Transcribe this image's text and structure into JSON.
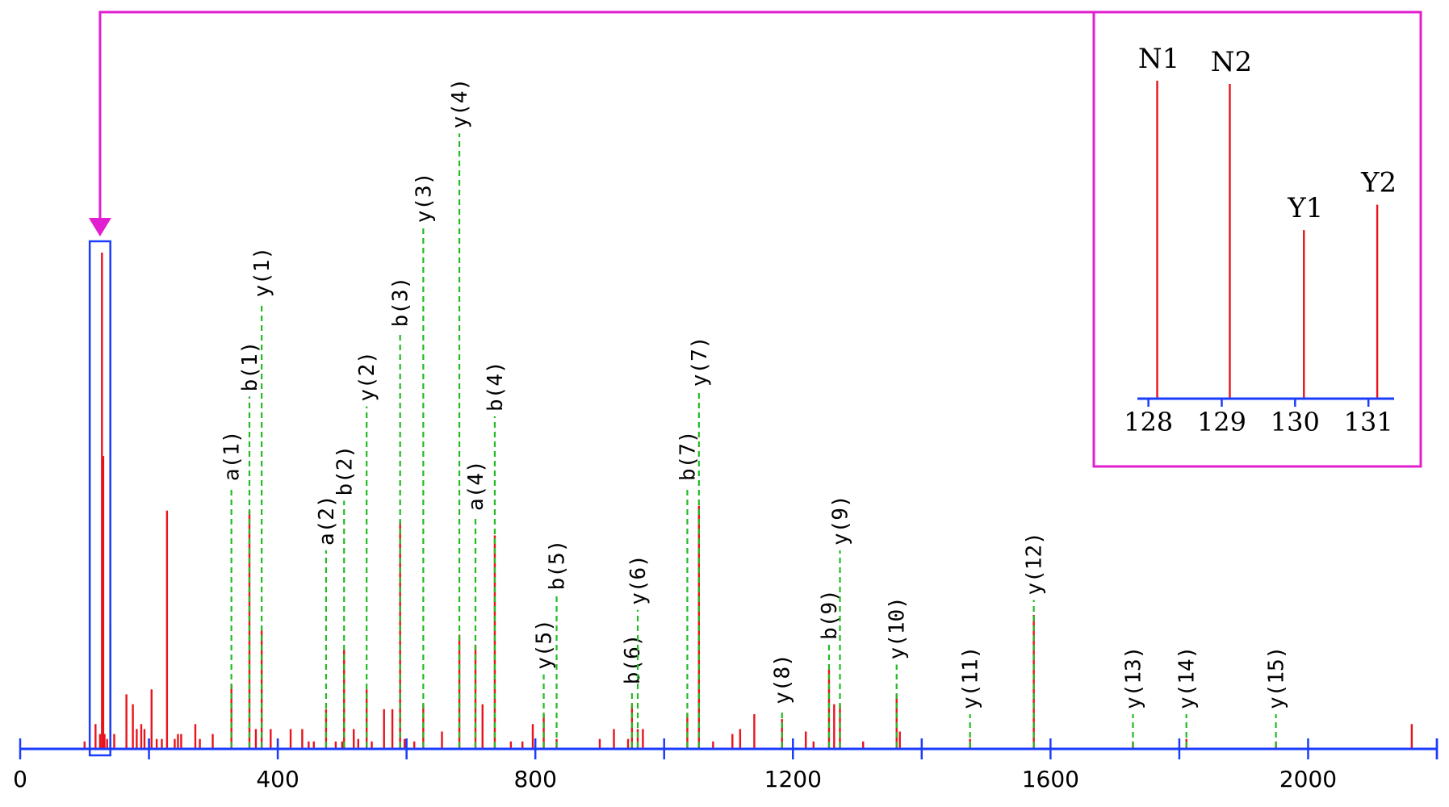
{
  "chart_data": [
    {
      "type": "bar",
      "title": "",
      "xlabel": "",
      "ylabel": "",
      "xlim": [
        0,
        2200
      ],
      "ylim": [
        0,
        100
      ],
      "xticks": [
        0,
        400,
        800,
        1200,
        1600,
        2000
      ],
      "xtick_labels": [
        "0",
        "400",
        "800",
        "1200",
        "1600",
        "2000"
      ],
      "grid": false,
      "colors": {
        "peak": "#e8131c",
        "ion_guide": "#22bb22",
        "axis": "#1a3cff",
        "inset": "#e21fd0"
      },
      "annotated_ions": [
        {
          "label": "a(1)",
          "mz": 328,
          "intensity": 13,
          "label_y": 53
        },
        {
          "label": "b(1)",
          "mz": 356,
          "intensity": 48,
          "label_y": 71
        },
        {
          "label": "y(1)",
          "mz": 375,
          "intensity": 24,
          "label_y": 90
        },
        {
          "label": "a(2)",
          "mz": 475,
          "intensity": 8,
          "label_y": 40
        },
        {
          "label": "b(2)",
          "mz": 503,
          "intensity": 20,
          "label_y": 50
        },
        {
          "label": "y(2)",
          "mz": 538,
          "intensity": 12,
          "label_y": 69
        },
        {
          "label": "b(3)",
          "mz": 590,
          "intensity": 46,
          "label_y": 84
        },
        {
          "label": "y(3)",
          "mz": 626,
          "intensity": 9,
          "label_y": 105
        },
        {
          "label": "y(4)",
          "mz": 682,
          "intensity": 23,
          "label_y": 124
        },
        {
          "label": "a(4)",
          "mz": 707,
          "intensity": 21,
          "label_y": 47
        },
        {
          "label": "b(4)",
          "mz": 737,
          "intensity": 43,
          "label_y": 67
        },
        {
          "label": "y(5)",
          "mz": 813,
          "intensity": 7,
          "label_y": 15
        },
        {
          "label": "b(5)",
          "mz": 833,
          "intensity": 2,
          "label_y": 31
        },
        {
          "label": "b(6)",
          "mz": 950,
          "intensity": 9,
          "label_y": 12
        },
        {
          "label": "y(6)",
          "mz": 959,
          "intensity": 4,
          "label_y": 28
        },
        {
          "label": "b(7)",
          "mz": 1036,
          "intensity": 7,
          "label_y": 53
        },
        {
          "label": "y(7)",
          "mz": 1054,
          "intensity": 49,
          "label_y": 72
        },
        {
          "label": "y(8)",
          "mz": 1183,
          "intensity": 6,
          "label_y": 8
        },
        {
          "label": "b(9)",
          "mz": 1256,
          "intensity": 16,
          "label_y": 21
        },
        {
          "label": "y(9)",
          "mz": 1273,
          "intensity": 9,
          "label_y": 40
        },
        {
          "label": "y(10)",
          "mz": 1361,
          "intensity": 11,
          "label_y": 17
        },
        {
          "label": "y(11)",
          "mz": 1475,
          "intensity": 2,
          "label_y": 7
        },
        {
          "label": "y(12)",
          "mz": 1574,
          "intensity": 27,
          "label_y": 30
        },
        {
          "label": "y(13)",
          "mz": 1728,
          "intensity": 1.5,
          "label_y": 7
        },
        {
          "label": "y(14)",
          "mz": 1811,
          "intensity": 2,
          "label_y": 7
        },
        {
          "label": "y(15)",
          "mz": 1950,
          "intensity": 1.5,
          "label_y": 7
        }
      ],
      "unlabeled_peaks": [
        [
          100,
          1.5
        ],
        [
          117,
          5
        ],
        [
          124,
          3
        ],
        [
          127,
          100
        ],
        [
          129,
          59
        ],
        [
          131,
          3
        ],
        [
          135,
          2
        ],
        [
          140,
          25
        ],
        [
          146,
          3
        ],
        [
          165,
          11
        ],
        [
          175,
          9
        ],
        [
          181,
          4
        ],
        [
          188,
          5
        ],
        [
          193,
          4
        ],
        [
          200,
          2
        ],
        [
          204,
          12
        ],
        [
          212,
          2
        ],
        [
          220,
          2
        ],
        [
          228,
          48
        ],
        [
          240,
          2
        ],
        [
          245,
          3
        ],
        [
          250,
          3
        ],
        [
          272,
          5
        ],
        [
          279,
          2
        ],
        [
          299,
          3
        ],
        [
          366,
          4
        ],
        [
          389,
          4
        ],
        [
          400,
          2
        ],
        [
          420,
          4
        ],
        [
          438,
          4
        ],
        [
          448,
          1.5
        ],
        [
          456,
          1.5
        ],
        [
          490,
          1.5
        ],
        [
          500,
          1.5
        ],
        [
          518,
          4
        ],
        [
          525,
          2
        ],
        [
          546,
          1.5
        ],
        [
          565,
          8
        ],
        [
          578,
          8
        ],
        [
          597,
          2
        ],
        [
          612,
          1.5
        ],
        [
          655,
          3.5
        ],
        [
          718,
          9
        ],
        [
          762,
          1.5
        ],
        [
          780,
          1.5
        ],
        [
          796,
          5
        ],
        [
          900,
          2
        ],
        [
          922,
          4
        ],
        [
          944,
          2
        ],
        [
          967,
          4
        ],
        [
          1076,
          1.5
        ],
        [
          1106,
          3
        ],
        [
          1118,
          4
        ],
        [
          1140,
          7
        ],
        [
          1220,
          3.5
        ],
        [
          1232,
          1.5
        ],
        [
          1264,
          9
        ],
        [
          1309,
          1.5
        ],
        [
          1366,
          3.5
        ],
        [
          2161,
          5
        ]
      ],
      "zoom_region": {
        "mz_from": 108,
        "mz_to": 140
      }
    },
    {
      "type": "bar",
      "title": "",
      "xlabel": "",
      "ylabel": "",
      "xlim": [
        127.85,
        131.35
      ],
      "ylim": [
        0,
        100
      ],
      "xticks": [
        128,
        129,
        130,
        131
      ],
      "xtick_labels": [
        "128",
        "129",
        "130",
        "131"
      ],
      "peaks": [
        {
          "label": "N1",
          "mz": 128.12,
          "intensity": 100
        },
        {
          "label": "N2",
          "mz": 129.11,
          "intensity": 99
        },
        {
          "label": "Y1",
          "mz": 130.12,
          "intensity": 53
        },
        {
          "label": "Y2",
          "mz": 131.12,
          "intensity": 61
        }
      ]
    }
  ]
}
